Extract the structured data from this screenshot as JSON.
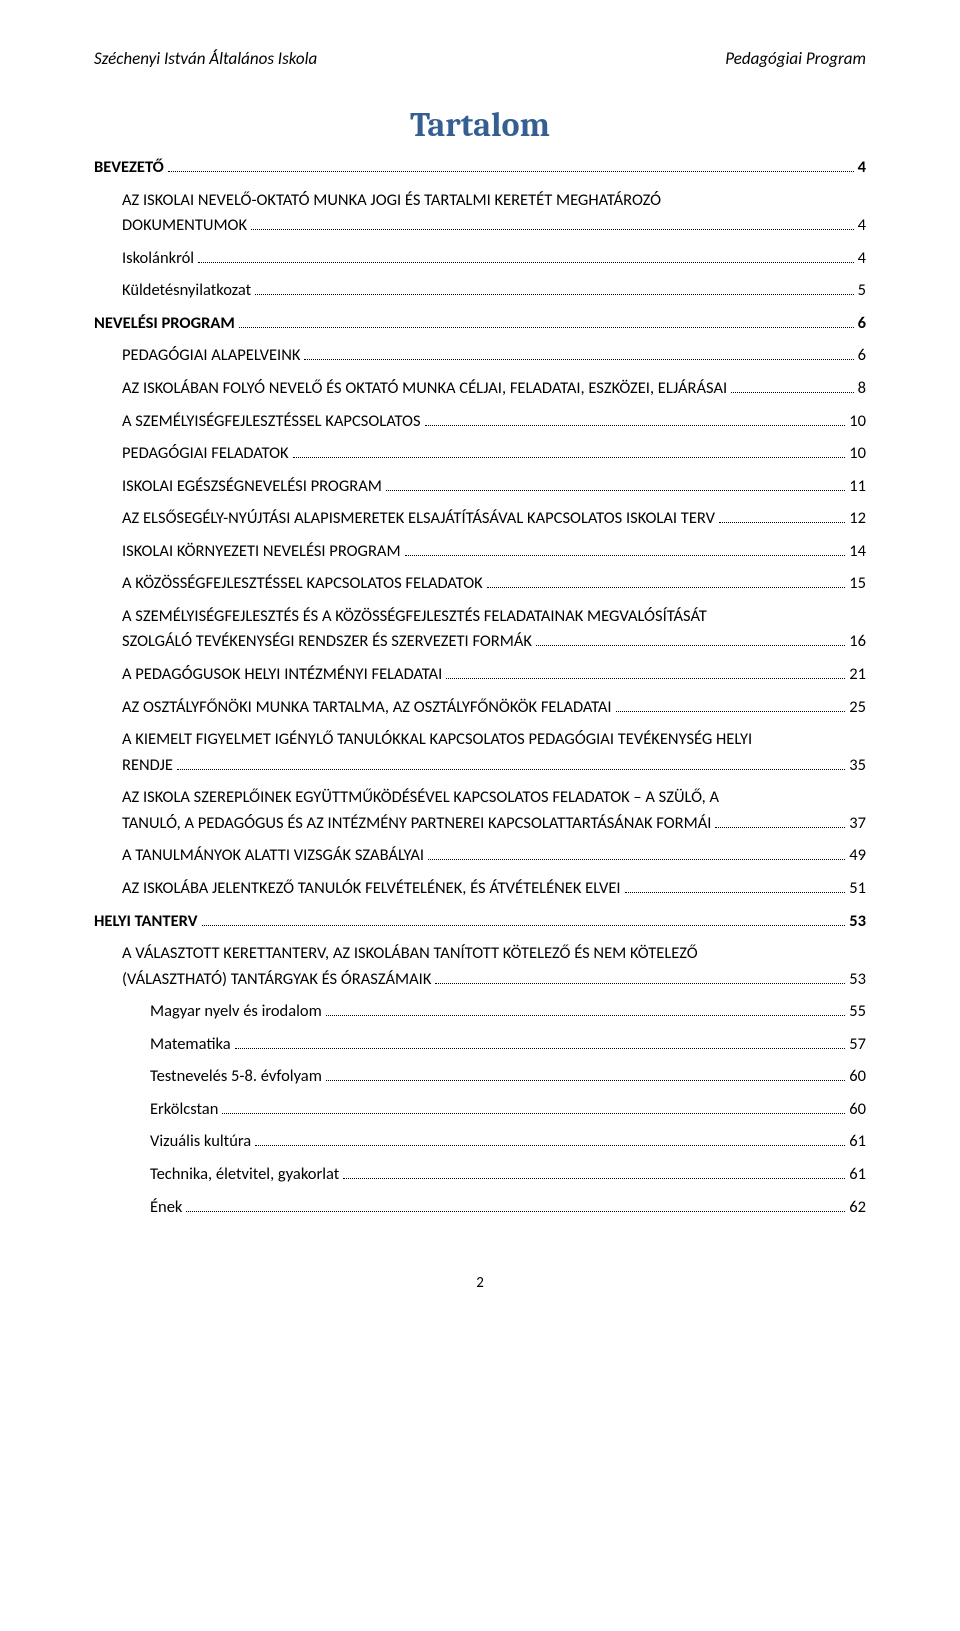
{
  "header": {
    "left": "Széchenyi István Általános Iskola",
    "right": "Pedagógiai Program"
  },
  "title": "Tartalom",
  "toc": [
    {
      "level": 0,
      "text": "BEVEZETŐ",
      "page": "4"
    },
    {
      "level": 1,
      "text": "AZ ISKOLAI NEVELŐ-OKTATÓ MUNKA JOGI ÉS TARTALMI KERETÉT MEGHATÁROZÓ",
      "cont": "DOKUMENTUMOK",
      "page": "4"
    },
    {
      "level": 1,
      "text": "Iskolánkról",
      "page": "4"
    },
    {
      "level": 1,
      "text": "Küldetésnyilatkozat",
      "page": "5"
    },
    {
      "level": 0,
      "text": "NEVELÉSI PROGRAM",
      "page": "6"
    },
    {
      "level": 1,
      "text": "PEDAGÓGIAI ALAPELVEINK",
      "page": "6"
    },
    {
      "level": 1,
      "text": "AZ ISKOLÁBAN FOLYÓ NEVELŐ ÉS OKTATÓ MUNKA CÉLJAI, FELADATAI, ESZKÖZEI, ELJÁRÁSAI",
      "page": "8"
    },
    {
      "level": 1,
      "text": "A SZEMÉLYISÉGFEJLESZTÉSSEL KAPCSOLATOS",
      "page": "10"
    },
    {
      "level": 1,
      "text": "PEDAGÓGIAI FELADATOK",
      "page": "10"
    },
    {
      "level": 1,
      "text": "ISKOLAI EGÉSZSÉGNEVELÉSI PROGRAM",
      "page": "11"
    },
    {
      "level": 1,
      "text": "AZ ELSŐSEGÉLY-NYÚJTÁSI ALAPISMERETEK ELSAJÁTÍTÁSÁVAL KAPCSOLATOS ISKOLAI TERV",
      "page": "12"
    },
    {
      "level": 1,
      "text": "ISKOLAI KÖRNYEZETI NEVELÉSI PROGRAM",
      "page": "14"
    },
    {
      "level": 1,
      "text": "A KÖZÖSSÉGFEJLESZTÉSSEL KAPCSOLATOS FELADATOK",
      "page": "15"
    },
    {
      "level": 1,
      "text": "A SZEMÉLYISÉGFEJLESZTÉS ÉS A KÖZÖSSÉGFEJLESZTÉS FELADATAINAK MEGVALÓSÍTÁSÁT",
      "cont": "SZOLGÁLÓ TEVÉKENYSÉGI RENDSZER ÉS SZERVEZETI FORMÁK",
      "page": "16"
    },
    {
      "level": 1,
      "text": "A PEDAGÓGUSOK HELYI INTÉZMÉNYI FELADATAI",
      "page": "21"
    },
    {
      "level": 1,
      "text": "AZ OSZTÁLYFŐNÖKI MUNKA TARTALMA, AZ OSZTÁLYFŐNÖKÖK FELADATAI",
      "page": "25"
    },
    {
      "level": 1,
      "text": "A KIEMELT FIGYELMET IGÉNYLŐ TANULÓKKAL KAPCSOLATOS PEDAGÓGIAI TEVÉKENYSÉG HELYI",
      "cont": "RENDJE",
      "page": "35"
    },
    {
      "level": 1,
      "text": "AZ ISKOLA SZEREPLŐINEK EGYÜTTMŰKÖDÉSÉVEL KAPCSOLATOS FELADATOK – A SZÜLŐ, A",
      "cont": "TANULÓ, A PEDAGÓGUS ÉS AZ INTÉZMÉNY PARTNEREI KAPCSOLATTARTÁSÁNAK FORMÁI",
      "page": "37"
    },
    {
      "level": 1,
      "text": "A TANULMÁNYOK ALATTI VIZSGÁK SZABÁLYAI",
      "page": "49"
    },
    {
      "level": 1,
      "text": "AZ ISKOLÁBA JELENTKEZŐ TANULÓK FELVÉTELÉNEK, ÉS ÁTVÉTELÉNEK ELVEI",
      "page": "51"
    },
    {
      "level": 0,
      "text": "HELYI TANTERV",
      "page": "53"
    },
    {
      "level": 1,
      "text": "A VÁLASZTOTT KERETTANTERV, AZ ISKOLÁBAN TANÍTOTT KÖTELEZŐ ÉS NEM KÖTELEZŐ",
      "cont": "(VÁLASZTHATÓ) TANTÁRGYAK ÉS ÓRASZÁMAIK",
      "page": "53"
    },
    {
      "level": 2,
      "text": "Magyar nyelv és irodalom",
      "page": "55"
    },
    {
      "level": 2,
      "text": "Matematika",
      "page": "57"
    },
    {
      "level": 2,
      "text": "Testnevelés 5-8. évfolyam",
      "page": "60"
    },
    {
      "level": 2,
      "text": "Erkölcstan",
      "page": "60"
    },
    {
      "level": 2,
      "text": "Vizuális kultúra",
      "page": "61"
    },
    {
      "level": 2,
      "text": "Technika, életvitel, gyakorlat",
      "page": "61"
    },
    {
      "level": 2,
      "text": "Ének",
      "page": "62"
    }
  ],
  "footer": {
    "page_number": "2"
  },
  "colors": {
    "title_color": "#365f91",
    "text_color": "#000000",
    "background": "#ffffff"
  },
  "typography": {
    "body_fontsize_pt": 12,
    "title_fontsize_pt": 26,
    "header_fontsize_pt": 12,
    "header_style": "italic"
  }
}
